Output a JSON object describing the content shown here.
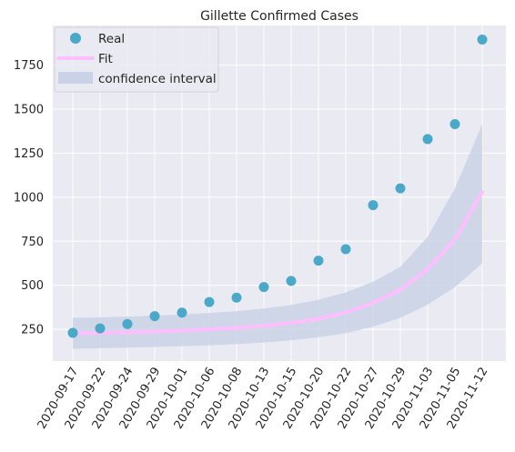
{
  "chart_data": {
    "type": "line",
    "title": "Gillette Confirmed Cases",
    "xlabel": "",
    "ylabel": "",
    "categories": [
      "2020-09-17",
      "2020-09-22",
      "2020-09-24",
      "2020-09-29",
      "2020-10-01",
      "2020-10-06",
      "2020-10-08",
      "2020-10-13",
      "2020-10-15",
      "2020-10-20",
      "2020-10-22",
      "2020-10-27",
      "2020-10-29",
      "2020-11-03",
      "2020-11-05",
      "2020-11-12"
    ],
    "ylim": [
      70,
      1975
    ],
    "yticks": [
      250,
      500,
      750,
      1000,
      1250,
      1500,
      1750
    ],
    "grid": true,
    "legend_position": "top-left",
    "series": [
      {
        "name": "Real",
        "kind": "scatter",
        "color": "#4aa8c8",
        "values": [
          230,
          255,
          280,
          325,
          345,
          405,
          430,
          490,
          525,
          640,
          705,
          955,
          1050,
          1330,
          1415,
          1895
        ]
      },
      {
        "name": "Fit",
        "kind": "line",
        "color": "#ffbfff",
        "values": [
          228,
          230,
          233,
          238,
          243,
          250,
          258,
          270,
          286,
          310,
          345,
          400,
          475,
          590,
          760,
          1030
        ]
      },
      {
        "name": "confidence interval",
        "kind": "band",
        "color": "#c9d2e6",
        "lower": [
          140,
          143,
          146,
          150,
          154,
          160,
          166,
          175,
          188,
          205,
          228,
          265,
          315,
          390,
          490,
          625
        ],
        "upper": [
          315,
          318,
          322,
          328,
          334,
          343,
          353,
          368,
          388,
          418,
          460,
          520,
          605,
          775,
          1050,
          1415
        ]
      }
    ]
  }
}
